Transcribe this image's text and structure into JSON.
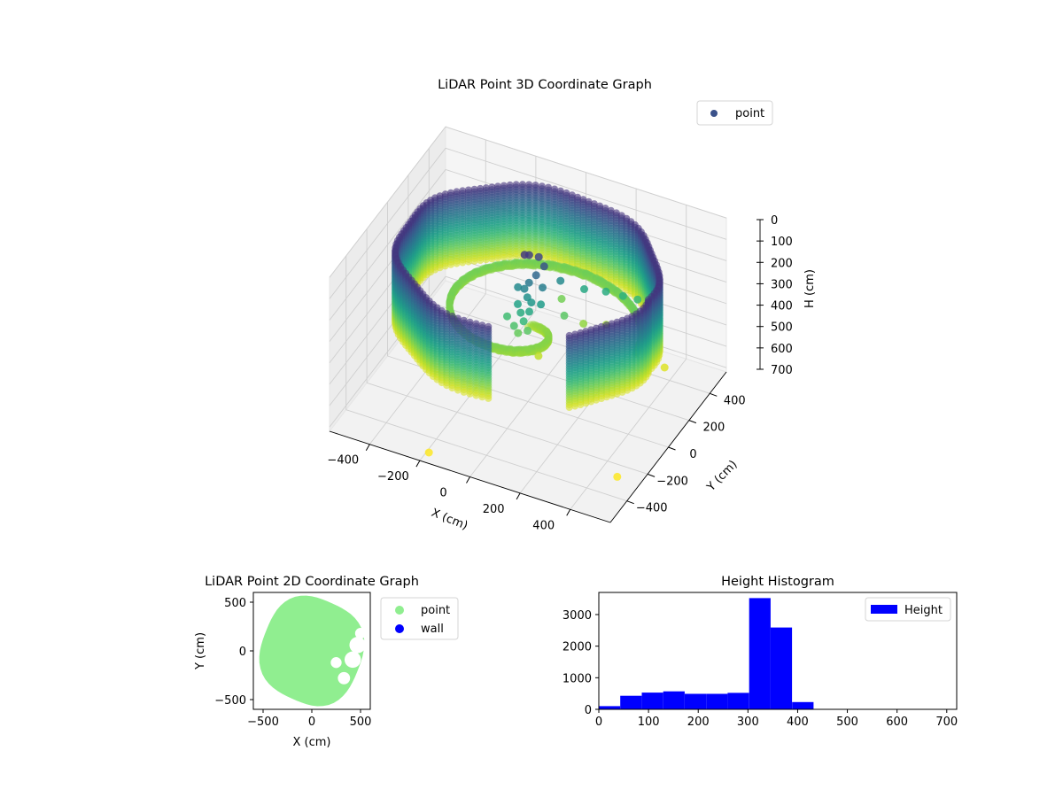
{
  "chart_data": [
    {
      "id": "3d",
      "type": "scatter",
      "title": "LiDAR Point 3D Coordinate Graph",
      "xlabel": "X (cm)",
      "ylabel": "Y (cm)",
      "zlabel": "H (cm)",
      "xlim": [
        -560,
        560
      ],
      "ylim": [
        -560,
        560
      ],
      "zlim": [
        0,
        720
      ],
      "z_inverted": true,
      "xticks": [
        "−400",
        "−200",
        "0",
        "200",
        "400"
      ],
      "yticks": [
        "−400",
        "−200",
        "0",
        "200",
        "400"
      ],
      "zticks": [
        "0",
        "100",
        "200",
        "300",
        "400",
        "500",
        "600",
        "700"
      ],
      "grid": true,
      "colormap": "viridis",
      "legend": {
        "position": "top-right",
        "entries": [
          {
            "label": "point",
            "color": "#3b528b"
          }
        ]
      },
      "wall": {
        "radius": 480,
        "h_top": 60,
        "h_bottom": 400,
        "gap_angle_start": 275,
        "gap_angle_end": 310
      },
      "floor": {
        "radius": 430,
        "h": 370
      },
      "object_points": [
        [
          -20,
          60,
          80
        ],
        [
          -30,
          40,
          70
        ],
        [
          10,
          80,
          90
        ],
        [
          40,
          60,
          110
        ],
        [
          20,
          30,
          140
        ],
        [
          0,
          10,
          170
        ],
        [
          -10,
          -10,
          190
        ],
        [
          10,
          -30,
          210
        ],
        [
          30,
          -40,
          220
        ],
        [
          -20,
          -50,
          240
        ],
        [
          0,
          -70,
          260
        ],
        [
          20,
          -90,
          280
        ],
        [
          -10,
          -110,
          300
        ],
        [
          10,
          -120,
          320
        ],
        [
          30,
          -60,
          250
        ],
        [
          -40,
          0,
          200
        ],
        [
          50,
          20,
          180
        ],
        [
          60,
          -20,
          230
        ],
        [
          -50,
          -80,
          290
        ],
        [
          40,
          -100,
          310
        ],
        [
          80,
          120,
          200
        ],
        [
          150,
          180,
          250
        ],
        [
          220,
          220,
          260
        ],
        [
          280,
          240,
          270
        ],
        [
          330,
          260,
          280
        ],
        [
          120,
          60,
          310
        ],
        [
          60,
          180,
          330
        ],
        [
          180,
          100,
          350
        ],
        [
          250,
          150,
          360
        ],
        [
          100,
          -140,
          380
        ],
        [
          520,
          60,
          400
        ],
        [
          -180,
          -520,
          700
        ],
        [
          480,
          -300,
          700
        ]
      ]
    },
    {
      "id": "2d",
      "type": "scatter",
      "title": "LiDAR Point 2D Coordinate Graph",
      "xlabel": "X (cm)",
      "ylabel": "Y (cm)",
      "xlim": [
        -600,
        600
      ],
      "ylim": [
        -600,
        600
      ],
      "xticks": [
        -500,
        0,
        500
      ],
      "yticks": [
        -500,
        0,
        500
      ],
      "xticklabels": [
        "−500",
        "0",
        "500"
      ],
      "yticklabels": [
        "−500",
        "0",
        "500"
      ],
      "legend": {
        "position": "outside-right",
        "entries": [
          {
            "label": "point",
            "color": "#90ee90"
          },
          {
            "label": "wall",
            "color": "#0000ff"
          }
        ]
      }
    },
    {
      "id": "hist",
      "type": "bar",
      "title": "Height Histogram",
      "xlim": [
        0,
        720
      ],
      "ylim": [
        0,
        3700
      ],
      "xticks": [
        0,
        100,
        200,
        300,
        400,
        500,
        600,
        700
      ],
      "yticks": [
        0,
        1000,
        2000,
        3000
      ],
      "bin_edges": [
        0,
        43.2,
        86.4,
        129.6,
        172.8,
        216,
        259.2,
        302.4,
        345.6,
        388.8,
        432,
        475.2,
        518.4,
        561.6,
        604.8,
        648,
        691.2
      ],
      "values": [
        100,
        430,
        530,
        570,
        490,
        490,
        520,
        3520,
        2590,
        230,
        0,
        0,
        0,
        0,
        0,
        10
      ],
      "legend": {
        "position": "top-right",
        "entries": [
          {
            "label": "Height",
            "color": "#0000ff"
          }
        ]
      }
    }
  ]
}
